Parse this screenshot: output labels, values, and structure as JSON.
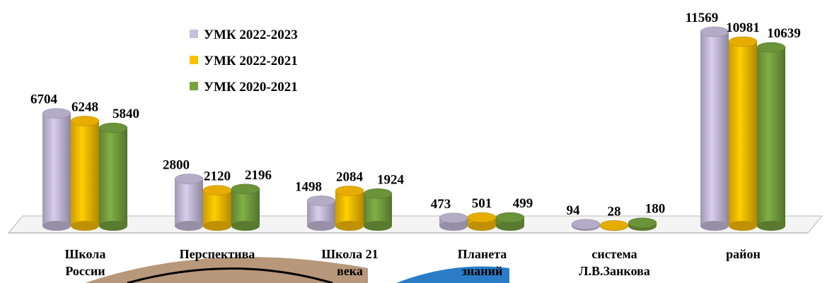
{
  "chart_data": {
    "type": "bar3d",
    "categories": [
      "Школа России",
      "Перспектива",
      "Школа 21 века",
      "Планета знаний",
      "система Л.В.Занкова",
      "район"
    ],
    "series": [
      {
        "name": "УМК 2022-2023",
        "color": "#c8bfdc",
        "values": [
          6704,
          2800,
          1498,
          473,
          94,
          11569
        ]
      },
      {
        "name": "УМК 2022-2021",
        "color": "#ffc000",
        "values": [
          6248,
          2120,
          2084,
          501,
          28,
          10981
        ]
      },
      {
        "name": "УМК 2020-2021",
        "color": "#77a33f",
        "values": [
          5840,
          2196,
          1924,
          499,
          180,
          10639
        ]
      }
    ],
    "legend": "top-left"
  }
}
